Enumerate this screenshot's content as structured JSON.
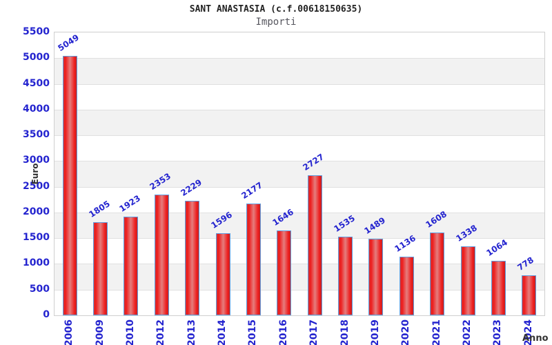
{
  "chart_data": {
    "type": "bar",
    "title": "SANT ANASTASIA (c.f.00618150635)",
    "subtitle": "Importi",
    "xlabel": "Anno",
    "ylabel": "Euro",
    "categories": [
      "2006",
      "2009",
      "2010",
      "2012",
      "2013",
      "2014",
      "2015",
      "2016",
      "2017",
      "2018",
      "2019",
      "2020",
      "2021",
      "2022",
      "2023",
      "2024"
    ],
    "values": [
      5049,
      1805,
      1923,
      2353,
      2229,
      1596,
      2177,
      1646,
      2727,
      1535,
      1489,
      1136,
      1608,
      1338,
      1064,
      778
    ],
    "ylim": [
      0,
      5500
    ],
    "ytick_step": 500,
    "yticks": [
      0,
      500,
      1000,
      1500,
      2000,
      2500,
      3000,
      3500,
      4000,
      4500,
      5000,
      5500
    ],
    "grid": "horizontal-bands",
    "legend": "none",
    "colors": {
      "title": "#222222",
      "subtitle": "#56565e",
      "tick_label": "#2424cf",
      "value_label": "#2424cf",
      "axis_title": "#333333",
      "bar_border": "#5e9de0",
      "bar_gradient": [
        "#d73232",
        "#ee1c1c",
        "#e57e7e",
        "#ee1c1c",
        "#c32424"
      ],
      "band_main": "#ffffff",
      "band_alt": "#f2f2f2",
      "gridline": "#e0e0e0",
      "plot_border": "#cfcfcf"
    }
  }
}
